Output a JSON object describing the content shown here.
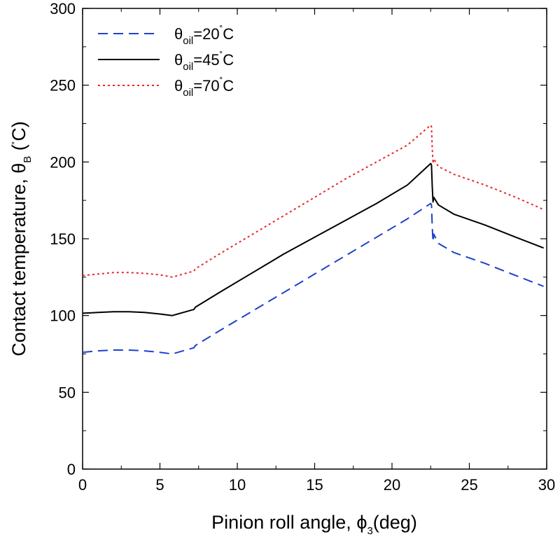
{
  "chart_data": {
    "type": "line",
    "xlabel_main": "Pinion roll angle, ",
    "xlabel_symbol": "ϕ",
    "xlabel_sub": "3",
    "xlabel_tail": "(deg)",
    "ylabel_main": "Contact temperature, ",
    "ylabel_symbol": "θ",
    "ylabel_sub": "B",
    "ylabel_tail_open": " (",
    "ylabel_degree": "˚",
    "ylabel_tail_close": "C)",
    "xlim": [
      0,
      30
    ],
    "ylim": [
      0,
      300
    ],
    "xticks": [
      "0",
      "5",
      "10",
      "15",
      "20",
      "25",
      "30"
    ],
    "yticks": [
      "0",
      "50",
      "100",
      "150",
      "200",
      "250",
      "300"
    ],
    "legend_position": "top-left",
    "grid": false,
    "series": [
      {
        "legend_symbol": "θ",
        "legend_sub": "oil",
        "legend_value": "=20",
        "legend_degree": "˚",
        "legend_unit": "C",
        "color": "#1f3fd0",
        "style": "dashed",
        "x": [
          0,
          1,
          2,
          3,
          4,
          5,
          5.8,
          6.5,
          7.2,
          7.3,
          9,
          11,
          13,
          15,
          17,
          19,
          21,
          22.5,
          22.55,
          22.6,
          22.65,
          22.7,
          23,
          24,
          26,
          28,
          29.8
        ],
        "y": [
          76,
          77,
          77.5,
          77.5,
          77,
          76,
          75,
          77,
          79,
          80.5,
          91,
          103,
          115,
          127,
          139,
          151,
          163,
          173,
          172,
          158,
          148,
          153,
          147,
          141,
          134,
          126,
          119
        ]
      },
      {
        "legend_symbol": "θ",
        "legend_sub": "oil",
        "legend_value": "=45",
        "legend_degree": "˚",
        "legend_unit": "C",
        "color": "#000000",
        "style": "solid",
        "x": [
          0,
          1,
          2,
          3,
          4,
          5,
          5.8,
          6.5,
          7.2,
          7.3,
          9,
          11,
          13,
          15,
          17,
          19,
          21,
          22.5,
          22.55,
          22.6,
          22.65,
          22.7,
          23,
          24,
          26,
          28,
          29.8
        ],
        "y": [
          101.5,
          102,
          102.5,
          102.5,
          102,
          101,
          100,
          102,
          104,
          105.5,
          116,
          128,
          140,
          151,
          162,
          173,
          185,
          199,
          198,
          184,
          174,
          177,
          172,
          166,
          159,
          151,
          144
        ]
      },
      {
        "legend_symbol": "θ",
        "legend_sub": "oil",
        "legend_value": "=70",
        "legend_degree": "˚",
        "legend_unit": "C",
        "color": "#e8262b",
        "style": "dotted",
        "x": [
          0,
          1,
          2,
          3,
          4,
          5,
          5.8,
          6.5,
          7.2,
          7.3,
          9,
          11,
          13,
          15,
          17,
          19,
          21,
          22.5,
          22.55,
          22.6,
          22.65,
          22.7,
          23,
          24,
          26,
          28,
          29.8
        ],
        "y": [
          126,
          127,
          128,
          128,
          127.5,
          126.5,
          125,
          127,
          129,
          130.5,
          141,
          153,
          165,
          177,
          189,
          200,
          211,
          224,
          223,
          209,
          199,
          202,
          197,
          192,
          185,
          177,
          169
        ]
      }
    ]
  }
}
